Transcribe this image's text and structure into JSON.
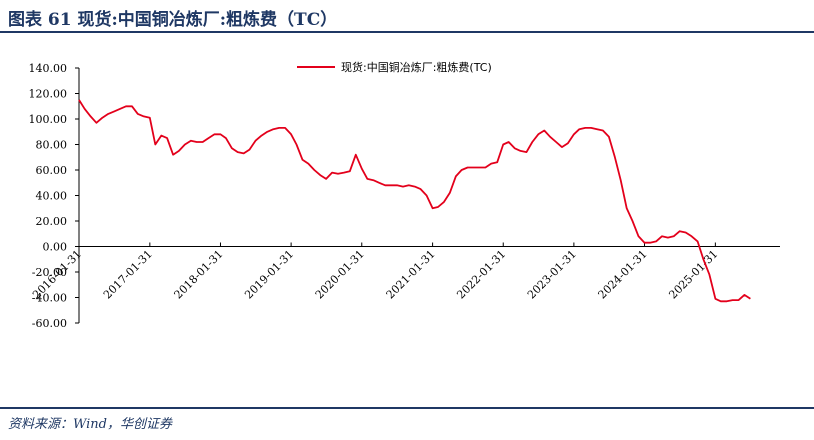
{
  "header": {
    "title": "图表 61    现货:中国铜冶炼厂:粗炼费（TC）"
  },
  "footer": {
    "source": "资料来源：Wind，华创证券"
  },
  "colors": {
    "brand": "#1f3864",
    "series": "#e3001b"
  },
  "chart_data": {
    "type": "line",
    "title": "",
    "xlabel": "",
    "ylabel": "",
    "ylim": [
      -60,
      140
    ],
    "yticks": [
      "140.00",
      "120.00",
      "100.00",
      "80.00",
      "60.00",
      "40.00",
      "20.00",
      "0.00",
      "-20.00",
      "-40.00",
      "-60.00"
    ],
    "xticks": [
      "2016-01-31",
      "2017-01-31",
      "2018-01-31",
      "2019-01-31",
      "2020-01-31",
      "2021-01-31",
      "2022-01-31",
      "2023-01-31",
      "2024-01-31",
      "2025-01-31"
    ],
    "xrange": [
      "2016-01-31",
      "2025-12-31"
    ],
    "grid": false,
    "legend_position": "top-right",
    "series": [
      {
        "name": "现货:中国铜冶炼厂:粗炼费(TC)",
        "color": "#e3001b",
        "points": [
          [
            "2016-01-31",
            115
          ],
          [
            "2016-02-29",
            108
          ],
          [
            "2016-03-31",
            102
          ],
          [
            "2016-04-30",
            97
          ],
          [
            "2016-05-31",
            101
          ],
          [
            "2016-06-30",
            104
          ],
          [
            "2016-07-31",
            106
          ],
          [
            "2016-08-31",
            108
          ],
          [
            "2016-09-30",
            110
          ],
          [
            "2016-10-31",
            110
          ],
          [
            "2016-11-30",
            104
          ],
          [
            "2016-12-31",
            102
          ],
          [
            "2017-01-31",
            101
          ],
          [
            "2017-02-28",
            80
          ],
          [
            "2017-03-31",
            87
          ],
          [
            "2017-04-30",
            85
          ],
          [
            "2017-05-31",
            72
          ],
          [
            "2017-06-30",
            75
          ],
          [
            "2017-07-31",
            80
          ],
          [
            "2017-08-31",
            83
          ],
          [
            "2017-09-30",
            82
          ],
          [
            "2017-10-31",
            82
          ],
          [
            "2017-11-30",
            85
          ],
          [
            "2017-12-31",
            88
          ],
          [
            "2018-01-31",
            88
          ],
          [
            "2018-02-28",
            85
          ],
          [
            "2018-03-31",
            77
          ],
          [
            "2018-04-30",
            74
          ],
          [
            "2018-05-31",
            73
          ],
          [
            "2018-06-30",
            76
          ],
          [
            "2018-07-31",
            83
          ],
          [
            "2018-08-31",
            87
          ],
          [
            "2018-09-30",
            90
          ],
          [
            "2018-10-31",
            92
          ],
          [
            "2018-11-30",
            93
          ],
          [
            "2018-12-31",
            93
          ],
          [
            "2019-01-31",
            88
          ],
          [
            "2019-02-28",
            80
          ],
          [
            "2019-03-31",
            68
          ],
          [
            "2019-04-30",
            65
          ],
          [
            "2019-05-31",
            60
          ],
          [
            "2019-06-30",
            56
          ],
          [
            "2019-07-31",
            53
          ],
          [
            "2019-08-31",
            58
          ],
          [
            "2019-09-30",
            57
          ],
          [
            "2019-10-31",
            58
          ],
          [
            "2019-11-30",
            59
          ],
          [
            "2019-12-31",
            72
          ],
          [
            "2020-01-31",
            61
          ],
          [
            "2020-02-29",
            53
          ],
          [
            "2020-03-31",
            52
          ],
          [
            "2020-04-30",
            50
          ],
          [
            "2020-05-31",
            48
          ],
          [
            "2020-06-30",
            48
          ],
          [
            "2020-07-31",
            48
          ],
          [
            "2020-08-31",
            47
          ],
          [
            "2020-09-30",
            48
          ],
          [
            "2020-10-31",
            47
          ],
          [
            "2020-11-30",
            45
          ],
          [
            "2020-12-31",
            40
          ],
          [
            "2021-01-31",
            30
          ],
          [
            "2021-02-28",
            31
          ],
          [
            "2021-03-31",
            35
          ],
          [
            "2021-04-30",
            42
          ],
          [
            "2021-05-31",
            55
          ],
          [
            "2021-06-30",
            60
          ],
          [
            "2021-07-31",
            62
          ],
          [
            "2021-08-31",
            62
          ],
          [
            "2021-09-30",
            62
          ],
          [
            "2021-10-31",
            62
          ],
          [
            "2021-11-30",
            65
          ],
          [
            "2021-12-31",
            66
          ],
          [
            "2022-01-31",
            80
          ],
          [
            "2022-02-28",
            82
          ],
          [
            "2022-03-31",
            77
          ],
          [
            "2022-04-30",
            75
          ],
          [
            "2022-05-31",
            74
          ],
          [
            "2022-06-30",
            82
          ],
          [
            "2022-07-31",
            88
          ],
          [
            "2022-08-31",
            91
          ],
          [
            "2022-09-30",
            86
          ],
          [
            "2022-10-31",
            82
          ],
          [
            "2022-11-30",
            78
          ],
          [
            "2022-12-31",
            81
          ],
          [
            "2023-01-31",
            88
          ],
          [
            "2023-02-28",
            92
          ],
          [
            "2023-03-31",
            93
          ],
          [
            "2023-04-30",
            93
          ],
          [
            "2023-05-31",
            92
          ],
          [
            "2023-06-30",
            91
          ],
          [
            "2023-07-31",
            86
          ],
          [
            "2023-08-31",
            70
          ],
          [
            "2023-09-30",
            52
          ],
          [
            "2023-10-31",
            30
          ],
          [
            "2023-11-30",
            20
          ],
          [
            "2023-12-31",
            8
          ],
          [
            "2024-01-31",
            3
          ],
          [
            "2024-02-29",
            3
          ],
          [
            "2024-03-31",
            4
          ],
          [
            "2024-04-30",
            8
          ],
          [
            "2024-05-31",
            7
          ],
          [
            "2024-06-30",
            8
          ],
          [
            "2024-07-31",
            12
          ],
          [
            "2024-08-31",
            11
          ],
          [
            "2024-09-30",
            8
          ],
          [
            "2024-10-31",
            4
          ],
          [
            "2024-11-30",
            -10
          ],
          [
            "2024-12-31",
            -22
          ],
          [
            "2025-01-31",
            -41
          ],
          [
            "2025-02-28",
            -43
          ],
          [
            "2025-03-31",
            -43
          ],
          [
            "2025-04-30",
            -42
          ],
          [
            "2025-05-31",
            -42
          ],
          [
            "2025-06-30",
            -38
          ],
          [
            "2025-07-31",
            -41
          ]
        ]
      }
    ]
  }
}
